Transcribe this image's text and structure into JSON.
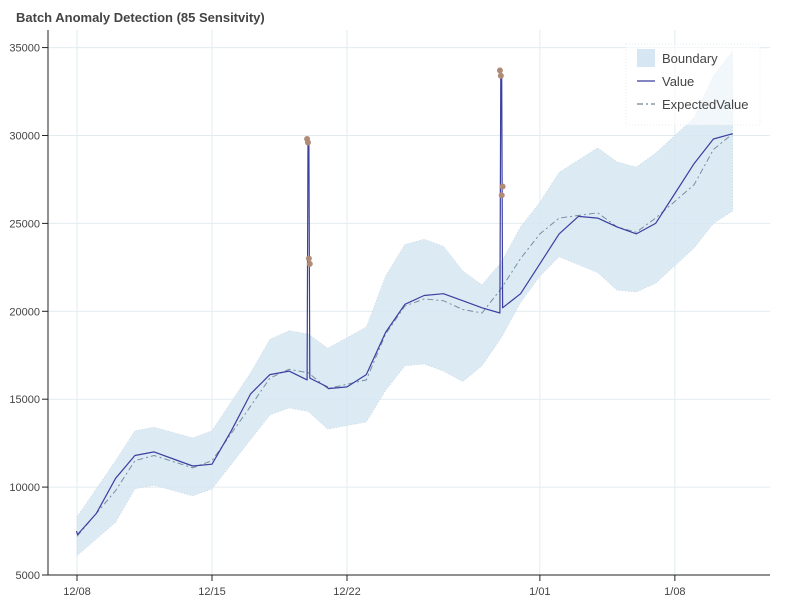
{
  "chart_data": {
    "type": "line",
    "title": "Batch Anomaly Detection (85 Sensitvity)",
    "xlabel": "",
    "ylabel": "",
    "x_range": [
      "2023-12-08",
      "2024-01-12"
    ],
    "ylim": [
      5000,
      36000
    ],
    "yticks": [
      5000,
      10000,
      15000,
      20000,
      25000,
      30000,
      35000
    ],
    "xticks": [
      {
        "date": "2023-12-08",
        "label": "12/08"
      },
      {
        "date": "2023-12-15",
        "label": "12/15"
      },
      {
        "date": "2023-12-22",
        "label": "12/22"
      },
      {
        "date": "2024-01-01",
        "label": "1/01"
      },
      {
        "date": "2024-01-08",
        "label": "1/08"
      }
    ],
    "grid": true,
    "legend_position": "top-right",
    "colors": {
      "boundary": "#d6e6f2",
      "value": "#3b3fa0",
      "expected": "#4a6a7a",
      "anomaly": "#b08c76",
      "grid": "#e2ecef",
      "axis": "#222222"
    },
    "legend": [
      {
        "key": "boundary",
        "label": "Boundary"
      },
      {
        "key": "value",
        "label": "Value"
      },
      {
        "key": "expected",
        "label": "ExpectedValue"
      }
    ],
    "series": [
      {
        "name": "Boundary",
        "x": [
          "2023-12-08",
          "2023-12-10",
          "2023-12-11",
          "2023-12-12",
          "2023-12-14",
          "2023-12-15",
          "2023-12-17",
          "2023-12-18",
          "2023-12-19",
          "2023-12-20",
          "2023-12-21",
          "2023-12-23",
          "2023-12-24",
          "2023-12-25",
          "2023-12-26",
          "2023-12-27",
          "2023-12-28",
          "2023-12-29",
          "2023-12-30",
          "2023-12-31",
          "2024-01-01",
          "2024-01-02",
          "2024-01-04",
          "2024-01-05",
          "2024-01-06",
          "2024-01-07",
          "2024-01-09",
          "2024-01-10",
          "2024-01-11"
        ],
        "upper": [
          8300,
          11500,
          13200,
          13400,
          12800,
          13200,
          16500,
          18400,
          18900,
          18700,
          17900,
          19100,
          22000,
          23800,
          24100,
          23700,
          22300,
          21500,
          22800,
          24800,
          26200,
          27900,
          29300,
          28500,
          28200,
          29000,
          31000,
          33400,
          34800
        ],
        "lower": [
          6100,
          8000,
          9900,
          10100,
          9500,
          9900,
          12700,
          14100,
          14500,
          14300,
          13300,
          13700,
          15500,
          16900,
          17000,
          16600,
          16000,
          16900,
          18500,
          20500,
          22000,
          23100,
          22200,
          21200,
          21100,
          21600,
          23600,
          25000,
          25700
        ]
      },
      {
        "name": "ExpectedValue",
        "x": [
          "2023-12-08",
          "2023-12-10",
          "2023-12-11",
          "2023-12-12",
          "2023-12-14",
          "2023-12-15",
          "2023-12-17",
          "2023-12-18",
          "2023-12-19",
          "2023-12-20",
          "2023-12-21",
          "2023-12-23",
          "2023-12-24",
          "2023-12-25",
          "2023-12-26",
          "2023-12-27",
          "2023-12-28",
          "2023-12-29",
          "2023-12-30",
          "2023-12-31",
          "2024-01-01",
          "2024-01-02",
          "2024-01-04",
          "2024-01-05",
          "2024-01-06",
          "2024-01-07",
          "2024-01-09",
          "2024-01-10",
          "2024-01-11"
        ],
        "values": [
          7200,
          9800,
          11500,
          11800,
          11100,
          11500,
          14600,
          16200,
          16700,
          16500,
          15600,
          16100,
          18700,
          20300,
          20700,
          20600,
          20100,
          19900,
          21300,
          23000,
          24400,
          25300,
          25600,
          24800,
          24500,
          25300,
          27200,
          29200,
          30100
        ]
      },
      {
        "name": "Value",
        "x": [
          "2023-12-08",
          "2023-12-08",
          "2023-12-09",
          "2023-12-10",
          "2023-12-11",
          "2023-12-12",
          "2023-12-13",
          "2023-12-14",
          "2023-12-15",
          "2023-12-16",
          "2023-12-17",
          "2023-12-18",
          "2023-12-19",
          "2023-12-20",
          "2023-12-20",
          "2023-12-20",
          "2023-12-20",
          "2023-12-21",
          "2023-12-21",
          "2023-12-22",
          "2023-12-23",
          "2023-12-24",
          "2023-12-25",
          "2023-12-26",
          "2023-12-27",
          "2023-12-28",
          "2023-12-29",
          "2023-12-30",
          "2023-12-30",
          "2023-12-30",
          "2023-12-30",
          "2023-12-31",
          "2024-01-01",
          "2024-01-02",
          "2024-01-03",
          "2024-01-04",
          "2024-01-05",
          "2024-01-06",
          "2024-01-07",
          "2024-01-08",
          "2024-01-09",
          "2024-01-10",
          "2024-01-11"
        ],
        "values": [
          7500,
          7300,
          8500,
          10500,
          11800,
          12000,
          11600,
          11200,
          11300,
          13200,
          15300,
          16400,
          16600,
          16100,
          29800,
          29600,
          16200,
          15700,
          15600,
          15700,
          16400,
          18800,
          20400,
          20900,
          21000,
          20600,
          20200,
          19900,
          33700,
          33300,
          20200,
          21000,
          22700,
          24400,
          25400,
          25300,
          24800,
          24400,
          25000,
          26700,
          28400,
          29800,
          30100
        ]
      }
    ],
    "anomalies": {
      "x": [
        "2023-12-20",
        "2023-12-20",
        "2023-12-20",
        "2023-12-20",
        "2023-12-30",
        "2023-12-30",
        "2023-12-30",
        "2023-12-30"
      ],
      "values": [
        29800,
        29600,
        23000,
        22700,
        33700,
        33400,
        26600,
        27100
      ]
    }
  }
}
